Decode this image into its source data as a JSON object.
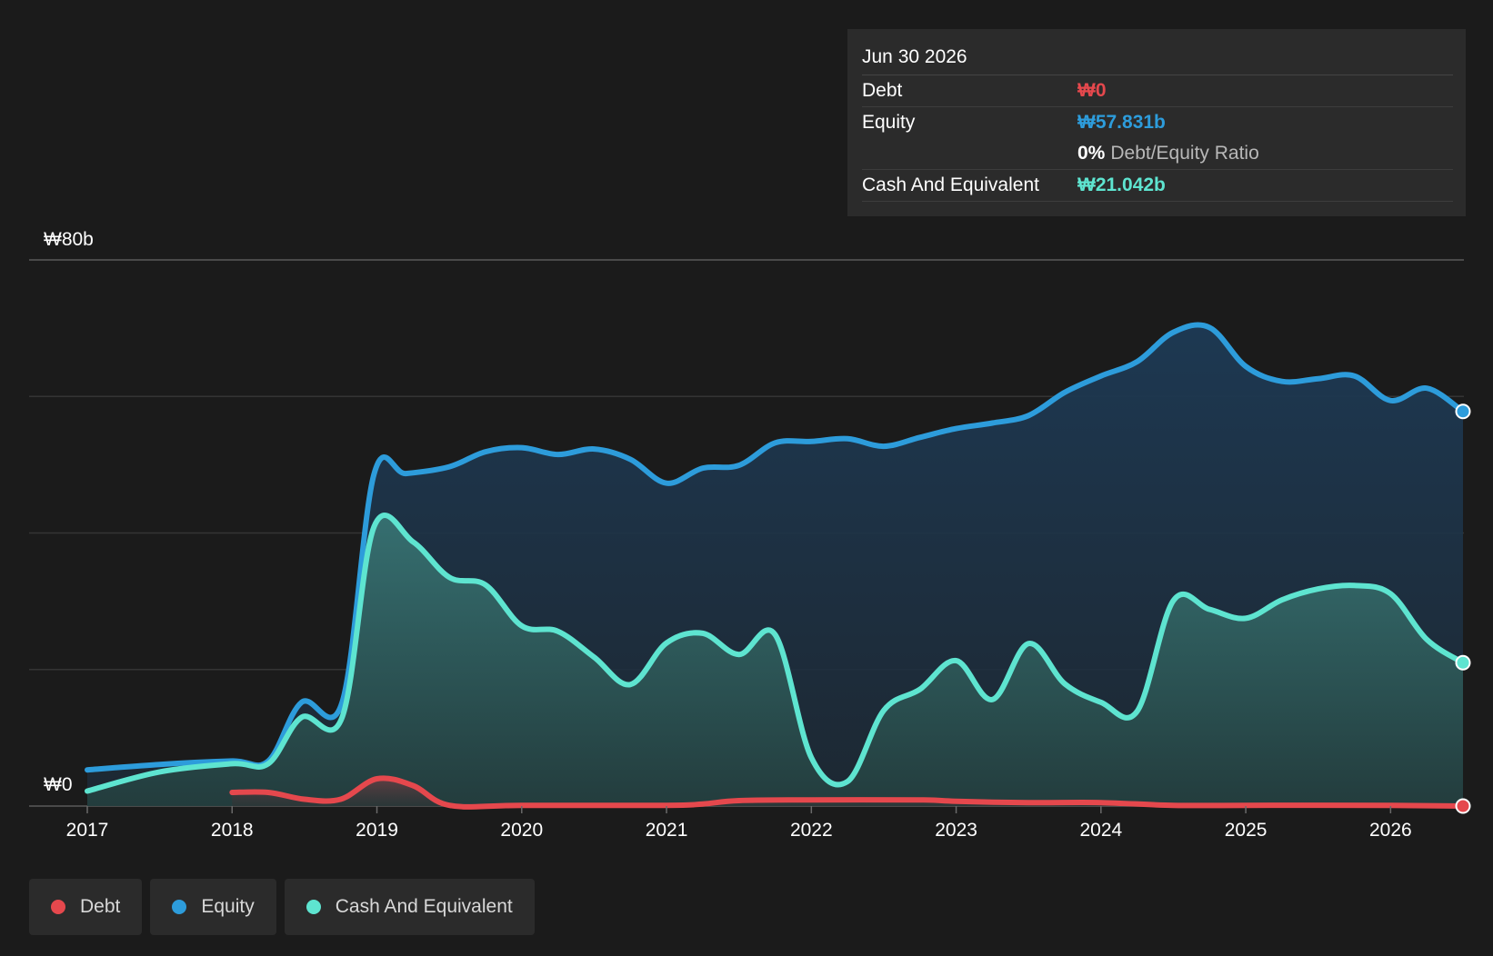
{
  "tooltip": {
    "date": "Jun 30 2026",
    "debt_label": "Debt",
    "debt_value": "₩0",
    "equity_label": "Equity",
    "equity_value": "₩57.831b",
    "ratio_value": "0%",
    "ratio_label": "Debt/Equity Ratio",
    "cash_label": "Cash And Equivalent",
    "cash_value": "₩21.042b"
  },
  "legend": [
    {
      "label": "Debt",
      "color": "#e5484d"
    },
    {
      "label": "Equity",
      "color": "#2d9cdb"
    },
    {
      "label": "Cash And Equivalent",
      "color": "#5ee4d0"
    }
  ],
  "chart_data": {
    "type": "area",
    "y_top_label": "₩80b",
    "y_bottom_label": "₩0",
    "ylim": [
      0,
      80
    ],
    "xlim": [
      2017,
      2026.5
    ],
    "x_ticks": [
      "2017",
      "2018",
      "2019",
      "2020",
      "2021",
      "2022",
      "2023",
      "2024",
      "2025",
      "2026"
    ],
    "grid": true,
    "legend_position": "bottom-left",
    "series": [
      {
        "name": "Equity",
        "color": "#2d9cdb",
        "points": [
          [
            2017,
            5.3
          ],
          [
            2017.5,
            6.1
          ],
          [
            2018,
            6.6
          ],
          [
            2018.25,
            6.6
          ],
          [
            2018.48,
            15.2
          ],
          [
            2018.76,
            15.2
          ],
          [
            2018.98,
            48.6
          ],
          [
            2019.2,
            48.7
          ],
          [
            2019.5,
            49.7
          ],
          [
            2019.75,
            51.9
          ],
          [
            2020,
            52.5
          ],
          [
            2020.25,
            51.5
          ],
          [
            2020.5,
            52.3
          ],
          [
            2020.75,
            50.8
          ],
          [
            2021,
            47.3
          ],
          [
            2021.25,
            49.5
          ],
          [
            2021.5,
            49.9
          ],
          [
            2021.75,
            53.2
          ],
          [
            2022,
            53.4
          ],
          [
            2022.25,
            53.8
          ],
          [
            2022.5,
            52.7
          ],
          [
            2022.75,
            54.0
          ],
          [
            2023,
            55.3
          ],
          [
            2023.25,
            56.1
          ],
          [
            2023.5,
            57.2
          ],
          [
            2023.75,
            60.6
          ],
          [
            2024,
            63.0
          ],
          [
            2024.25,
            65.1
          ],
          [
            2024.5,
            69.4
          ],
          [
            2024.75,
            70.1
          ],
          [
            2025,
            64.4
          ],
          [
            2025.25,
            62.2
          ],
          [
            2025.5,
            62.6
          ],
          [
            2025.75,
            63.0
          ],
          [
            2026,
            59.4
          ],
          [
            2026.25,
            61.2
          ],
          [
            2026.5,
            57.8
          ]
        ]
      },
      {
        "name": "Cash And Equivalent",
        "color": "#5ee4d0",
        "points": [
          [
            2017,
            2.2
          ],
          [
            2017.5,
            5.0
          ],
          [
            2018,
            6.2
          ],
          [
            2018.25,
            6.2
          ],
          [
            2018.48,
            13.0
          ],
          [
            2018.76,
            13.0
          ],
          [
            2018.98,
            40.9
          ],
          [
            2019.25,
            38.7
          ],
          [
            2019.5,
            33.5
          ],
          [
            2019.75,
            32.4
          ],
          [
            2020,
            26.4
          ],
          [
            2020.25,
            25.6
          ],
          [
            2020.5,
            21.8
          ],
          [
            2020.75,
            17.8
          ],
          [
            2021,
            23.9
          ],
          [
            2021.25,
            25.3
          ],
          [
            2021.5,
            22.2
          ],
          [
            2021.75,
            25.1
          ],
          [
            2022,
            7.1
          ],
          [
            2022.25,
            3.6
          ],
          [
            2022.5,
            14.0
          ],
          [
            2022.75,
            17.1
          ],
          [
            2023,
            21.3
          ],
          [
            2023.25,
            15.6
          ],
          [
            2023.5,
            23.8
          ],
          [
            2023.75,
            17.9
          ],
          [
            2024,
            15.2
          ],
          [
            2024.25,
            13.9
          ],
          [
            2024.5,
            30.1
          ],
          [
            2024.75,
            28.8
          ],
          [
            2025,
            27.5
          ],
          [
            2025.25,
            30.2
          ],
          [
            2025.5,
            31.8
          ],
          [
            2025.75,
            32.3
          ],
          [
            2026,
            31.1
          ],
          [
            2026.25,
            24.4
          ],
          [
            2026.5,
            21.0
          ]
        ]
      },
      {
        "name": "Debt",
        "color": "#e5484d",
        "points": [
          [
            2018,
            2.0
          ],
          [
            2018.25,
            2.0
          ],
          [
            2018.5,
            1.0
          ],
          [
            2018.75,
            1.0
          ],
          [
            2019,
            4.0
          ],
          [
            2019.25,
            3.0
          ],
          [
            2019.5,
            0.1
          ],
          [
            2020,
            0.1
          ],
          [
            2021,
            0.1
          ],
          [
            2021.25,
            0.3
          ],
          [
            2021.5,
            0.8
          ],
          [
            2022,
            0.9
          ],
          [
            2022.75,
            0.9
          ],
          [
            2023,
            0.7
          ],
          [
            2023.5,
            0.5
          ],
          [
            2024,
            0.5
          ],
          [
            2024.5,
            0.1
          ],
          [
            2025,
            0.1
          ],
          [
            2026,
            0.1
          ],
          [
            2026.5,
            0.0
          ]
        ]
      }
    ]
  }
}
